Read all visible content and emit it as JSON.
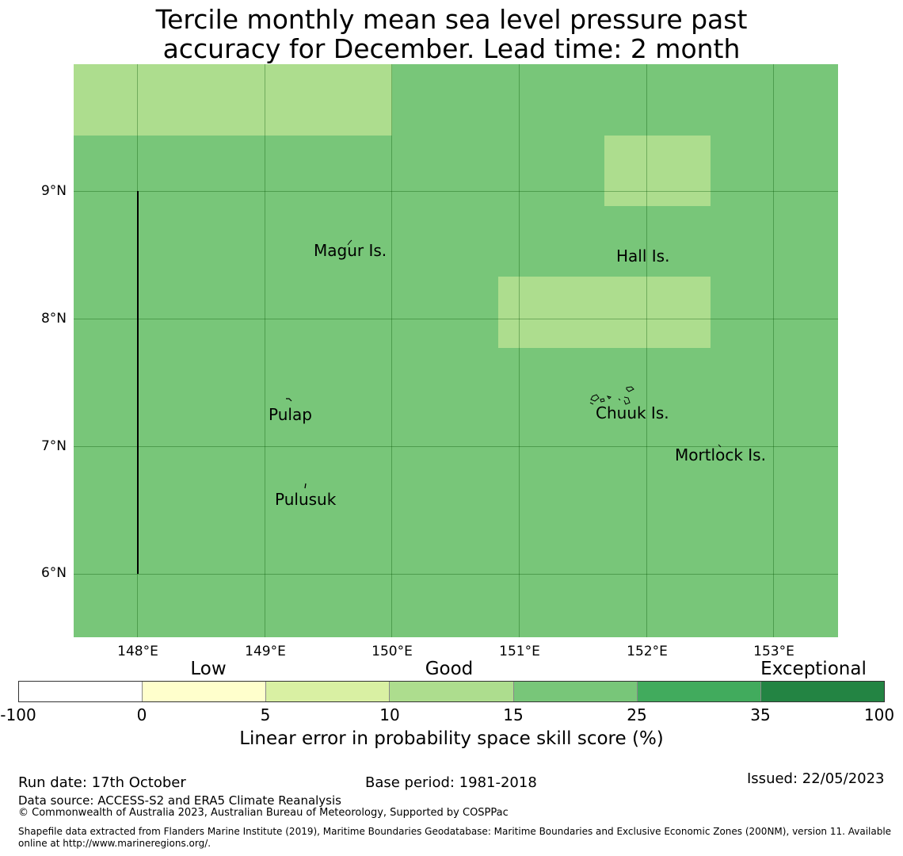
{
  "title": {
    "line1": "Tercile monthly mean sea level pressure past",
    "line2": "accuracy for December. Lead time: 2 month"
  },
  "map": {
    "skill_colors": {
      "good_15_25": "#78c679",
      "good_10_15": "#addd8e"
    },
    "latitude_labels": [
      "9°N",
      "8°N",
      "7°N",
      "6°N"
    ],
    "longitude_labels": [
      "148°E",
      "149°E",
      "150°E",
      "151°E",
      "152°E",
      "153°E"
    ],
    "places": [
      "Magur Is.",
      "Hall Is.",
      "Pulap",
      "Chuuk Is.",
      "Mortlock Is.",
      "Pulusuk"
    ]
  },
  "colorbar": {
    "categories": [
      "Low",
      "Good",
      "Exceptional"
    ],
    "ticks": [
      "-100",
      "0",
      "5",
      "10",
      "15",
      "25",
      "35",
      "100"
    ],
    "colors": [
      "#ffffff",
      "#ffffcc",
      "#d9f0a3",
      "#addd8e",
      "#78c679",
      "#41ab5d",
      "#238443"
    ],
    "label": "Linear error in probability space skill score (%)"
  },
  "footer": {
    "run_date": "Run date: 17th October",
    "base_period": "Base period: 1981-2018",
    "issued": "Issued: 22/05/2023",
    "data_source": "Data source: ACCESS-S2 and ERA5 Climate Reanalysis",
    "copyright": "© Commonwealth of Australia 2023, Australian Bureau of Meteorology, Supported by COSPPac",
    "shapefile_line1": "Shapefile data extracted from Flanders Marine Institute (2019), Maritime Boundaries Geodatabase: Maritime Boundaries and Exclusive Economic Zones (200NM), version 11. Available",
    "shapefile_line2": "online at http://www.marineregions.org/."
  }
}
